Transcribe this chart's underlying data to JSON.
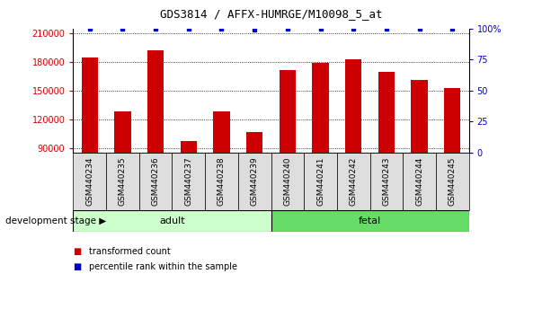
{
  "title": "GDS3814 / AFFX-HUMRGE/M10098_5_at",
  "categories": [
    "GSM440234",
    "GSM440235",
    "GSM440236",
    "GSM440237",
    "GSM440238",
    "GSM440239",
    "GSM440240",
    "GSM440241",
    "GSM440242",
    "GSM440243",
    "GSM440244",
    "GSM440245"
  ],
  "bar_values": [
    185000,
    128000,
    192000,
    97000,
    128000,
    107000,
    172000,
    179000,
    183000,
    170000,
    161000,
    153000
  ],
  "percentile_values": [
    100,
    100,
    100,
    100,
    100,
    99,
    100,
    100,
    100,
    100,
    100,
    100
  ],
  "bar_color": "#cc0000",
  "percentile_color": "#0000cc",
  "ylim_left": [
    85000,
    215000
  ],
  "ylim_right": [
    0,
    100
  ],
  "yticks_left": [
    90000,
    120000,
    150000,
    180000,
    210000
  ],
  "ytick_labels_left": [
    "90000",
    "120000",
    "150000",
    "180000",
    "210000"
  ],
  "yticks_right": [
    0,
    25,
    50,
    75,
    100
  ],
  "ytick_labels_right": [
    "0",
    "25",
    "50",
    "75",
    "100%"
  ],
  "group_adult_label": "adult",
  "group_fetal_label": "fetal",
  "adult_color": "#ccffcc",
  "fetal_color": "#66dd66",
  "stage_label": "development stage",
  "legend_bar_label": "transformed count",
  "legend_pct_label": "percentile rank within the sample",
  "background_color": "#ffffff",
  "tick_color_left": "#cc0000",
  "tick_color_right": "#0000cc",
  "bar_width": 0.5,
  "xticklabel_bg": "#dddddd",
  "n_adult": 6,
  "n_fetal": 6
}
